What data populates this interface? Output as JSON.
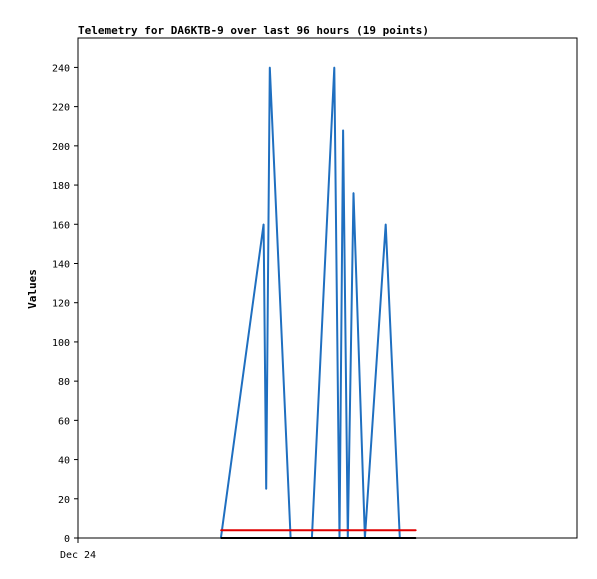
{
  "chart_data": {
    "type": "line",
    "title": "Telemetry for DA6KTB-9 over last 96 hours (19 points)",
    "ylabel": "Values",
    "xlabel": "",
    "ylim": [
      0,
      255
    ],
    "xlim": [
      0,
      96
    ],
    "y_ticks": [
      0,
      20,
      40,
      60,
      80,
      100,
      120,
      140,
      160,
      180,
      200,
      220,
      240
    ],
    "x_tick_labels": [
      {
        "x": 0,
        "label": "Dec 24"
      }
    ],
    "grid": false,
    "series": [
      {
        "color": "#1f6fc0",
        "points": [
          [
            27.5,
            0
          ],
          [
            35.7,
            160
          ],
          [
            36.2,
            25
          ],
          [
            36.9,
            240
          ],
          [
            40.9,
            0
          ],
          [
            45.0,
            0
          ],
          [
            49.3,
            240
          ],
          [
            50.3,
            0
          ],
          [
            51.0,
            208
          ],
          [
            51.9,
            0
          ],
          [
            53.0,
            176
          ],
          [
            55.2,
            0
          ],
          [
            59.2,
            160
          ],
          [
            61.9,
            0
          ]
        ]
      },
      {
        "color": "#e00000",
        "points": [
          [
            27.5,
            4
          ],
          [
            65.0,
            4
          ]
        ]
      },
      {
        "color": "#000000",
        "points": [
          [
            27.5,
            0
          ],
          [
            65.0,
            0
          ]
        ]
      }
    ]
  }
}
